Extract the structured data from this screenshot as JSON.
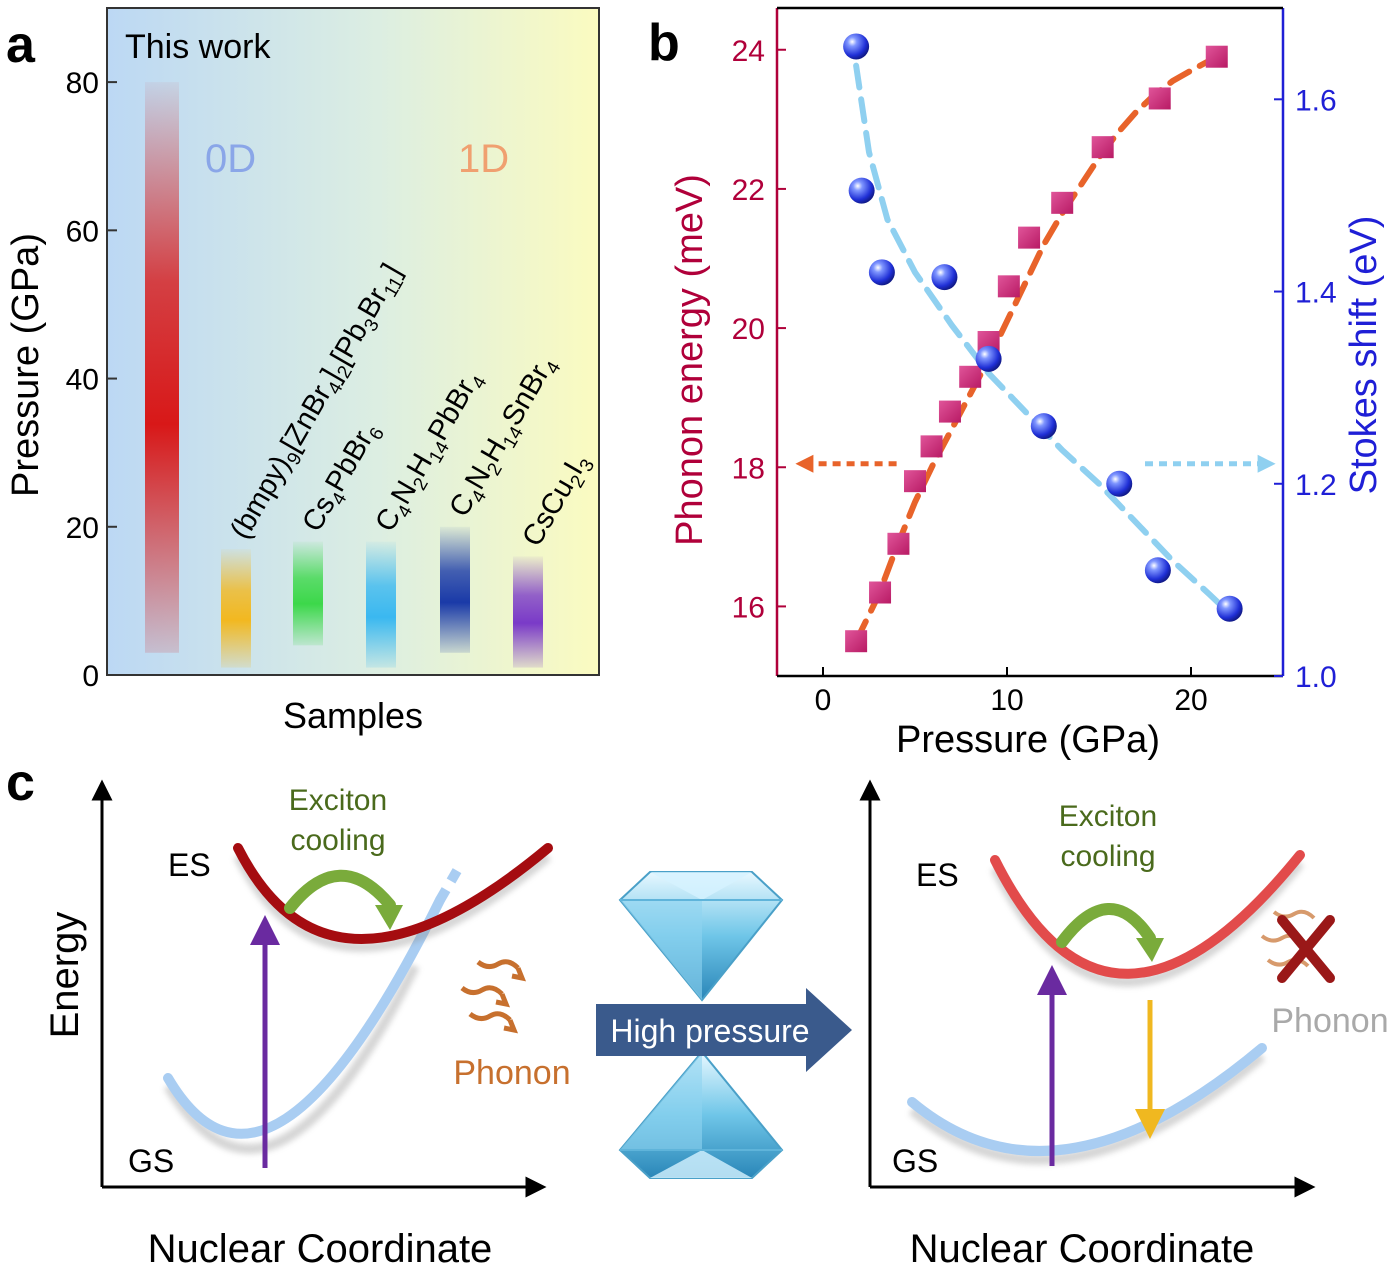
{
  "panels": {
    "a": {
      "label": "a"
    },
    "b": {
      "label": "b"
    },
    "c": {
      "label": "c"
    }
  },
  "colors": {
    "phonon_energy": "#b0003a",
    "phonon_marker": "#cc2f7e",
    "phonon_fit": "#e8632a",
    "stokes_axis": "#1f1fd6",
    "stokes_marker": "#2f4fe6",
    "stokes_fit": "#8fd0f0",
    "es_curve": "#a50c10",
    "es_curve_right": "#e24b4b",
    "gs_curve": "#a9cdf2",
    "excitation_arrow": "#6a2aa0",
    "emission_arrow": "#f0b820",
    "cooling_arrow": "#7aab3b",
    "phonon_label": "#c7702e",
    "phonon_label_faded": "#a9a9a9",
    "pressure_arrow": "#3a5a8c"
  },
  "chart_data": [
    {
      "type": "bar",
      "panel": "a",
      "ylabel": "Pressure (GPa)",
      "xlabel": "Samples",
      "ylim": [
        0,
        90
      ],
      "yticks": [
        0,
        20,
        40,
        60,
        80
      ],
      "annotations": {
        "this_work": "This work",
        "zero_d": "0D",
        "one_d": "1D"
      },
      "bars": [
        {
          "id": "this-work",
          "label": "",
          "low": 3,
          "high": 80,
          "color": "#d81818"
        },
        {
          "id": "zn-pb",
          "label_parts": [
            [
              "(bmpy)",
              "n"
            ],
            [
              "9",
              "sub"
            ],
            [
              "[ZnBr",
              "n"
            ],
            [
              "4",
              "sub"
            ],
            [
              "]",
              "n"
            ],
            [
              "2",
              "sub"
            ],
            [
              "[Pb",
              "n"
            ],
            [
              "3",
              "sub"
            ],
            [
              "Br",
              "n"
            ],
            [
              "11",
              "sub"
            ],
            [
              "]",
              "n"
            ]
          ],
          "low": 1,
          "high": 17,
          "color": "#f2b820"
        },
        {
          "id": "cs4pbbr6",
          "label_parts": [
            [
              "Cs",
              "n"
            ],
            [
              "4",
              "sub"
            ],
            [
              "PbBr",
              "n"
            ],
            [
              "6",
              "sub"
            ]
          ],
          "low": 4,
          "high": 18,
          "color": "#3cd84a"
        },
        {
          "id": "c4n2h14pbbr4",
          "label_parts": [
            [
              "C",
              "n"
            ],
            [
              "4",
              "sub"
            ],
            [
              "N",
              "n"
            ],
            [
              "2",
              "sub"
            ],
            [
              "H",
              "n"
            ],
            [
              "14",
              "sub"
            ],
            [
              "PbBr",
              "n"
            ],
            [
              "4",
              "sub"
            ]
          ],
          "low": 1,
          "high": 18,
          "color": "#3ab8f0"
        },
        {
          "id": "c4n2h14snbr4",
          "label_parts": [
            [
              "C",
              "n"
            ],
            [
              "4",
              "sub"
            ],
            [
              "N",
              "n"
            ],
            [
              "2",
              "sub"
            ],
            [
              "H",
              "n"
            ],
            [
              "14",
              "sub"
            ],
            [
              "SnBr",
              "n"
            ],
            [
              "4",
              "sub"
            ]
          ],
          "low": 3,
          "high": 20,
          "color": "#1a3aa8"
        },
        {
          "id": "cscu2i3",
          "label_parts": [
            [
              "CsCu",
              "n"
            ],
            [
              "2",
              "sub"
            ],
            [
              "I",
              "n"
            ],
            [
              "3",
              "sub"
            ]
          ],
          "low": 1,
          "high": 16,
          "color": "#7a3ac8"
        }
      ]
    },
    {
      "type": "scatter",
      "panel": "b",
      "xlabel": "Pressure (GPa)",
      "ylabel_left": "Phonon energy (meV)",
      "ylabel_right": "Stokes shift (eV)",
      "xlim": [
        -2.5,
        25
      ],
      "xticks": [
        0,
        10,
        20
      ],
      "ylim_left": [
        15,
        24.6
      ],
      "yticks_left": [
        16,
        18,
        20,
        22,
        24
      ],
      "ylim_right": [
        1.0,
        1.695
      ],
      "yticks_right": [
        1.0,
        1.2,
        1.4,
        1.6
      ],
      "series": [
        {
          "id": "phonon-energy",
          "axis": "left",
          "x": [
            1.8,
            3.1,
            4.1,
            5.0,
            5.9,
            6.9,
            8.0,
            9.0,
            10.1,
            11.2,
            13.0,
            15.2,
            18.3,
            21.4
          ],
          "y": [
            15.5,
            16.2,
            16.9,
            17.8,
            18.3,
            18.8,
            19.3,
            19.8,
            20.6,
            21.3,
            21.8,
            22.6,
            23.3,
            23.9
          ],
          "fit_x": [
            1.8,
            3,
            4,
            5,
            6,
            7,
            8,
            9,
            10,
            11,
            12,
            13,
            14,
            15,
            16,
            17,
            18,
            19,
            20,
            21.4
          ],
          "fit_y": [
            15.5,
            16.15,
            16.85,
            17.5,
            18.05,
            18.55,
            19.05,
            19.55,
            20.1,
            20.65,
            21.2,
            21.65,
            22.05,
            22.45,
            22.8,
            23.1,
            23.35,
            23.55,
            23.7,
            23.9
          ]
        },
        {
          "id": "stokes-shift",
          "axis": "right",
          "x": [
            1.8,
            2.1,
            3.2,
            6.6,
            9.0,
            12.0,
            16.1,
            18.2,
            22.1
          ],
          "y": [
            1.655,
            1.505,
            1.42,
            1.415,
            1.33,
            1.26,
            1.2,
            1.11,
            1.07
          ],
          "fit_x": [
            1.8,
            2.5,
            3.5,
            5,
            7,
            9,
            11,
            13,
            15,
            17,
            19,
            21,
            22.1
          ],
          "fit_y": [
            1.635,
            1.545,
            1.475,
            1.42,
            1.365,
            1.315,
            1.275,
            1.235,
            1.2,
            1.16,
            1.12,
            1.085,
            1.065
          ]
        }
      ],
      "indicator_arrows": [
        {
          "id": "phonon-axis-arrow",
          "from_x": 4,
          "to_x": -1.5,
          "y_left": 18.05
        },
        {
          "id": "stokes-axis-arrow",
          "from_x": 17.5,
          "to_x": 24.6,
          "y_left": 18.05
        }
      ]
    }
  ],
  "diagram": {
    "energy_label": "Energy",
    "x_label_left": "Nuclear Coordinate",
    "x_label_right": "Nuclear Coordinate",
    "es_label": "ES",
    "gs_label": "GS",
    "cooling_line1": "Exciton",
    "cooling_line2": "cooling",
    "phonon_label": "Phonon",
    "high_pressure_label": "High pressure"
  }
}
